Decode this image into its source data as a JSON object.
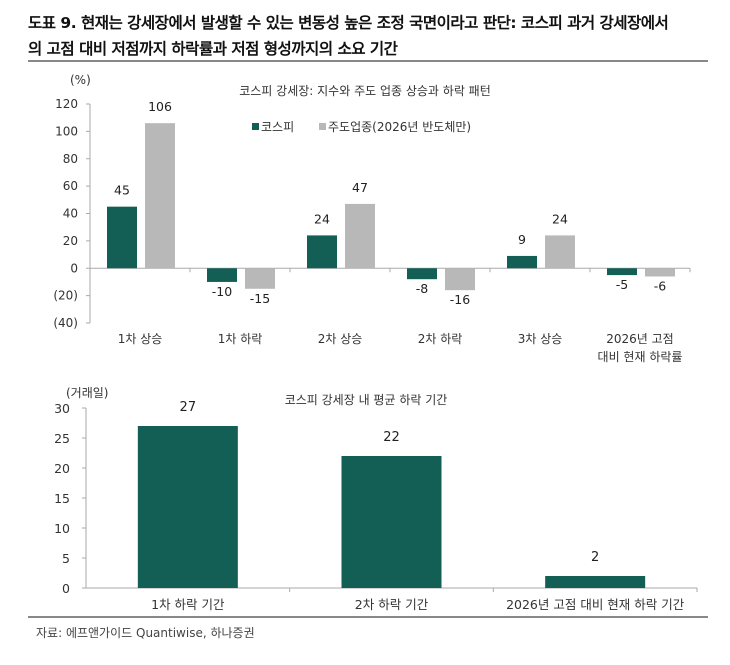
{
  "header": {
    "title_line1": "도표 9. 현재는 강세장에서 발생할 수 있는 변동성 높은 조정 국면이라고 판단: 코스피 과거 강세장에서",
    "title_line2": "의 고점 대비 저점까지 하락률과 저점 형성까지의 소요 기간"
  },
  "source": "자료: 에프앤가이드 Quantiwise, 하나증권",
  "colors": {
    "kospi": "#135f56",
    "sector": "#b8b8b8"
  },
  "chart_data": [
    {
      "type": "bar",
      "title": "코스피 강세장: 지수와 주도 업종 상승과 하락 패턴",
      "ylabel": "(%)",
      "ylim": [
        -40,
        120
      ],
      "yticks": [
        "120",
        "100",
        "80",
        "60",
        "40",
        "20",
        "0",
        "(20)",
        "(40)"
      ],
      "ytick_values": [
        120,
        100,
        80,
        60,
        40,
        20,
        0,
        -20,
        -40
      ],
      "categories": [
        "1차 상승",
        "1차 하락",
        "2차 상승",
        "2차 하락",
        "3차 상승",
        "2026년 고점\n대비 현재 하락률"
      ],
      "legend": "top-center",
      "series": [
        {
          "name": "코스피",
          "values": [
            45,
            -10,
            24,
            -8,
            9,
            -5
          ]
        },
        {
          "name": "주도업종(2026년 반도체만)",
          "values": [
            106,
            -15,
            47,
            -16,
            24,
            -6
          ]
        }
      ]
    },
    {
      "type": "bar",
      "title": "코스피 강세장 내 평균 하락 기간",
      "ylabel": "(거래일)",
      "ylim": [
        0,
        30
      ],
      "yticks": [
        "30",
        "25",
        "20",
        "15",
        "10",
        "5",
        "0"
      ],
      "ytick_values": [
        30,
        25,
        20,
        15,
        10,
        5,
        0
      ],
      "categories": [
        "1차 하락 기간",
        "2차 하락 기간",
        "2026년 고점 대비 현재 하락 기간"
      ],
      "series": [
        {
          "values": [
            27,
            22,
            2
          ]
        }
      ]
    }
  ]
}
